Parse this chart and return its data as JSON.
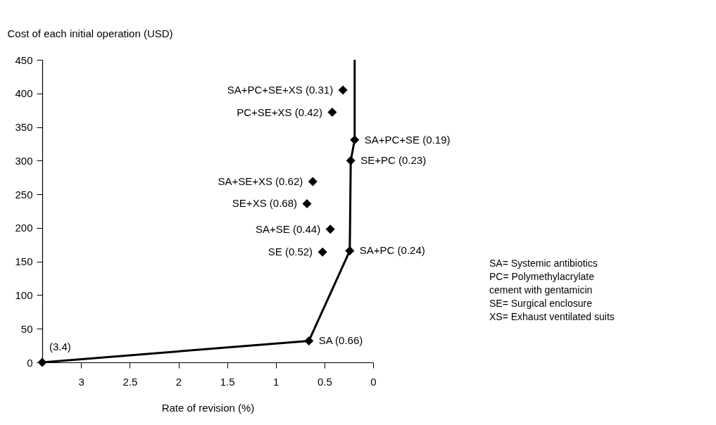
{
  "chart_data": {
    "type": "scatter",
    "xlabel": "Rate of revision (%)",
    "ylabel": "Cost of each initial operation (USD)",
    "xlim": [
      3.4,
      0
    ],
    "xticks": [
      3,
      2.5,
      2,
      1.5,
      1,
      0.5,
      0
    ],
    "ylim": [
      0,
      450
    ],
    "yticks": [
      0,
      50,
      100,
      150,
      200,
      250,
      300,
      350,
      400,
      450
    ],
    "grid": false,
    "series": [
      {
        "marker": "diamond",
        "color": "#000000",
        "x": [
          3.4,
          0.66,
          0.24,
          0.52,
          0.44,
          0.68,
          0.62,
          0.23,
          0.19,
          0.42,
          0.31
        ],
        "values": [
          0,
          32,
          166,
          164,
          198,
          236,
          269,
          300,
          331,
          372,
          405
        ]
      },
      {
        "type": "line",
        "color": "#000000",
        "x": [
          3.4,
          0.66,
          0.24,
          0.23,
          0.19,
          0.19
        ],
        "values": [
          0,
          32,
          166,
          300,
          331,
          450
        ]
      }
    ],
    "annotations": [
      {
        "text": "(3.4)",
        "x": 3.4,
        "y": 0
      },
      {
        "text": "SA (0.66)",
        "x": 0.66,
        "y": 32
      },
      {
        "text": "SA+PC (0.24)",
        "x": 0.24,
        "y": 166
      },
      {
        "text": "SE (0.52)",
        "x": 0.52,
        "y": 164
      },
      {
        "text": "SA+SE (0.44)",
        "x": 0.44,
        "y": 198
      },
      {
        "text": "SE+XS (0.68)",
        "x": 0.68,
        "y": 236
      },
      {
        "text": "SA+SE+XS (0.62)",
        "x": 0.62,
        "y": 269
      },
      {
        "text": "SE+PC (0.23)",
        "x": 0.23,
        "y": 300
      },
      {
        "text": "SA+PC+SE (0.19)",
        "x": 0.19,
        "y": 331
      },
      {
        "text": "PC+SE+XS (0.42)",
        "x": 0.42,
        "y": 372
      },
      {
        "text": "SA+PC+SE+XS (0.31)",
        "x": 0.31,
        "y": 405
      },
      "SA= Systemic antibiotics",
      "PC= Polymethylacrylate\n       cement with gentamicin",
      "SE= Surgical enclosure",
      "XS= Exhaust ventilated suits"
    ]
  }
}
